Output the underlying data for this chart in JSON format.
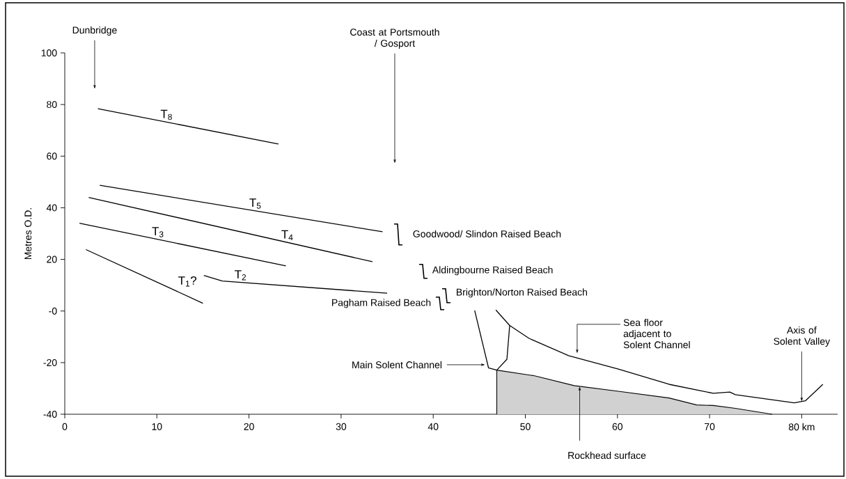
{
  "chart_data": {
    "type": "line",
    "ylabel": "Metres O.D.",
    "xlim": [
      0,
      83.9
    ],
    "ylim": [
      -40,
      100
    ],
    "xticks": [
      0,
      10,
      20,
      30,
      40,
      50,
      60,
      70,
      {
        "value": 80,
        "label": "80 km"
      }
    ],
    "yticks": [
      -40,
      -20,
      {
        "value": 0,
        "label": "-0"
      },
      20,
      40,
      60,
      80,
      100
    ],
    "marker": "none",
    "line_style": "solid",
    "series": [
      {
        "name": "T$_{8}$",
        "color": "#000000",
        "x": [
          3.6,
          23.2
        ],
        "values": [
          78.4,
          64.7
        ]
      },
      {
        "name": "T$_{5}$",
        "color": "#000000",
        "x": [
          3.8,
          34.5
        ],
        "values": [
          48.7,
          30.7
        ]
      },
      {
        "name": "T$_{4}$",
        "color": "#000000",
        "x": [
          2.6,
          33.4
        ],
        "values": [
          44.0,
          19.1
        ]
      },
      {
        "name": "T$_{3}$",
        "color": "#000000",
        "x": [
          1.6,
          24.0
        ],
        "values": [
          34.0,
          17.5
        ]
      },
      {
        "name": "T$_{1}$?",
        "color": "#000000",
        "x": [
          2.3,
          15.0
        ],
        "values": [
          23.8,
          3.0
        ]
      },
      {
        "name": "T$_{2}$",
        "color": "#000000",
        "x": [
          15.1,
          17.1,
          35.0
        ],
        "values": [
          13.8,
          11.6,
          6.9
        ]
      },
      {
        "color": "#000000",
        "x": [
          44.5,
          46.0,
          46.9,
          48.0,
          48.3,
          50.4,
          54.7,
          60.1,
          65.6,
          70.4,
          72.2,
          72.8,
          79.2,
          80.4,
          82.3
        ],
        "values": [
          0.2,
          -22.0,
          -22.9,
          -18.7,
          -5.6,
          -10.6,
          -17.3,
          -22.5,
          -28.4,
          -31.9,
          -31.4,
          -32.4,
          -35.6,
          -34.8,
          -28.4
        ]
      },
      {
        "color": "#000000",
        "x": [
          46.8,
          48.3
        ],
        "values": [
          0.4,
          -5.6
        ]
      },
      {
        "type": "area",
        "color": "#000000",
        "x": [
          46.9,
          46.9,
          51.0,
          55.3,
          60.1,
          65.6,
          68.6,
          70.4,
          72.8,
          76.8
        ],
        "values": [
          -40.0,
          -22.9,
          -25.1,
          -28.9,
          -31.1,
          -33.7,
          -36.4,
          -36.6,
          -37.7,
          -40.0
        ]
      }
    ],
    "annotations": [
      "Dunbridge",
      "Coast at Portsmouth / Gosport",
      "Goodwood/ Slindon Raised Beach",
      "Aldingbourne Raised Beach",
      "Brighton/Norton Raised Beach",
      "Pagham Raised Beach",
      "Main Solent Channel",
      "Sea floor adjacent to Solent Channel",
      {
        "text": "Axis of Solent Valley",
        "x": 80,
        "y": -35.1
      },
      {
        "text": "Rockhead surface",
        "x": 55.9,
        "y": -29.2
      }
    ]
  }
}
